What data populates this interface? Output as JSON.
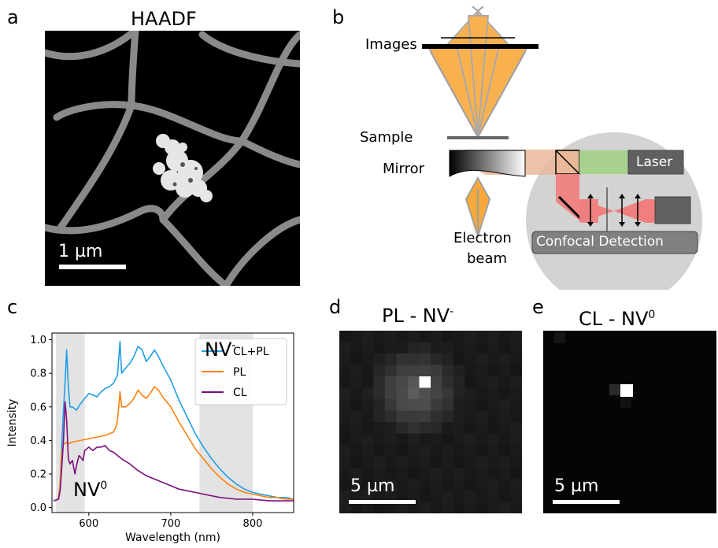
{
  "panels": {
    "a": {
      "letter": "a",
      "title": "HAADF",
      "scalebar": "1 µm"
    },
    "b": {
      "letter": "b",
      "labels": {
        "images": "Images",
        "sample": "Sample",
        "mirror": "Mirror",
        "electron_beam_line1": "Electron",
        "electron_beam_line2": "beam",
        "laser": "Laser",
        "confocal": "Confocal Detection"
      },
      "colors": {
        "beam": "#f9a93c",
        "laser": "#a9d18e",
        "detector": "#f08080",
        "circle": "#d0d0d0"
      }
    },
    "c": {
      "letter": "c",
      "nv_minus": "NV",
      "nv_minus_sup": "-",
      "nv_zero": "NV",
      "nv_zero_sup": "0"
    },
    "d": {
      "letter": "d",
      "title_main": "PL - NV",
      "title_sup": "-",
      "scalebar": "5 µm"
    },
    "e": {
      "letter": "e",
      "title_main": "CL - NV",
      "title_sup": "0",
      "scalebar": "5 µm"
    }
  },
  "chart_data": {
    "type": "line",
    "xlabel": "Wavelength (nm)",
    "ylabel": "Intensity",
    "xlim": [
      555,
      850
    ],
    "ylim": [
      -0.03,
      1.04
    ],
    "xticks": [
      600,
      700,
      800
    ],
    "yticks": [
      0.0,
      0.2,
      0.4,
      0.6,
      0.8,
      1.0
    ],
    "legend_position": "top-right",
    "shaded_regions": [
      [
        560,
        595
      ],
      [
        735,
        800
      ]
    ],
    "series": [
      {
        "name": "CL+PL",
        "color": "#1f9ee6",
        "x": [
          557,
          563,
          565,
          567,
          569,
          571,
          573,
          575,
          577,
          580,
          585,
          590,
          595,
          600,
          605,
          610,
          615,
          620,
          625,
          630,
          635,
          638,
          640,
          643,
          650,
          655,
          660,
          665,
          670,
          675,
          680,
          685,
          690,
          700,
          710,
          720,
          730,
          740,
          750,
          760,
          770,
          780,
          790,
          800,
          810,
          820,
          830,
          840,
          850
        ],
        "y": [
          0.04,
          0.05,
          0.15,
          0.38,
          0.58,
          0.75,
          0.94,
          0.72,
          0.6,
          0.6,
          0.58,
          0.62,
          0.65,
          0.68,
          0.67,
          0.66,
          0.69,
          0.71,
          0.72,
          0.74,
          0.79,
          0.99,
          0.8,
          0.82,
          0.86,
          0.9,
          0.96,
          0.94,
          0.87,
          0.9,
          0.94,
          0.9,
          0.85,
          0.76,
          0.64,
          0.54,
          0.44,
          0.36,
          0.29,
          0.23,
          0.18,
          0.14,
          0.11,
          0.09,
          0.08,
          0.07,
          0.06,
          0.06,
          0.05
        ]
      },
      {
        "name": "PL",
        "color": "#ff7f0e",
        "x": [
          557,
          563,
          565,
          567,
          569,
          571,
          573,
          575,
          580,
          590,
          600,
          610,
          620,
          630,
          634,
          636,
          638,
          640,
          645,
          650,
          655,
          660,
          665,
          670,
          675,
          680,
          685,
          690,
          700,
          710,
          720,
          730,
          740,
          750,
          760,
          770,
          780,
          790,
          800,
          810,
          820,
          830,
          840,
          850
        ],
        "y": [
          0.04,
          0.05,
          0.15,
          0.33,
          0.38,
          0.38,
          0.39,
          0.38,
          0.39,
          0.4,
          0.41,
          0.42,
          0.43,
          0.45,
          0.49,
          0.57,
          0.69,
          0.6,
          0.6,
          0.62,
          0.65,
          0.7,
          0.67,
          0.65,
          0.68,
          0.72,
          0.7,
          0.66,
          0.6,
          0.51,
          0.43,
          0.35,
          0.29,
          0.23,
          0.18,
          0.14,
          0.11,
          0.09,
          0.08,
          0.07,
          0.06,
          0.06,
          0.05,
          0.05
        ]
      },
      {
        "name": "CL",
        "color": "#7b0f7e",
        "x": [
          557,
          563,
          565,
          567,
          569,
          571,
          573,
          575,
          577,
          580,
          583,
          585,
          588,
          590,
          593,
          595,
          600,
          605,
          610,
          615,
          620,
          625,
          630,
          640,
          650,
          660,
          670,
          680,
          690,
          700,
          710,
          720,
          730,
          740,
          750,
          760,
          780,
          800,
          820,
          850
        ],
        "y": [
          0.04,
          0.05,
          0.1,
          0.24,
          0.4,
          0.63,
          0.52,
          0.29,
          0.26,
          0.28,
          0.2,
          0.25,
          0.31,
          0.3,
          0.28,
          0.34,
          0.36,
          0.34,
          0.36,
          0.36,
          0.37,
          0.34,
          0.33,
          0.29,
          0.26,
          0.22,
          0.19,
          0.17,
          0.15,
          0.13,
          0.11,
          0.1,
          0.09,
          0.08,
          0.07,
          0.06,
          0.05,
          0.05,
          0.04,
          0.04
        ]
      }
    ]
  }
}
